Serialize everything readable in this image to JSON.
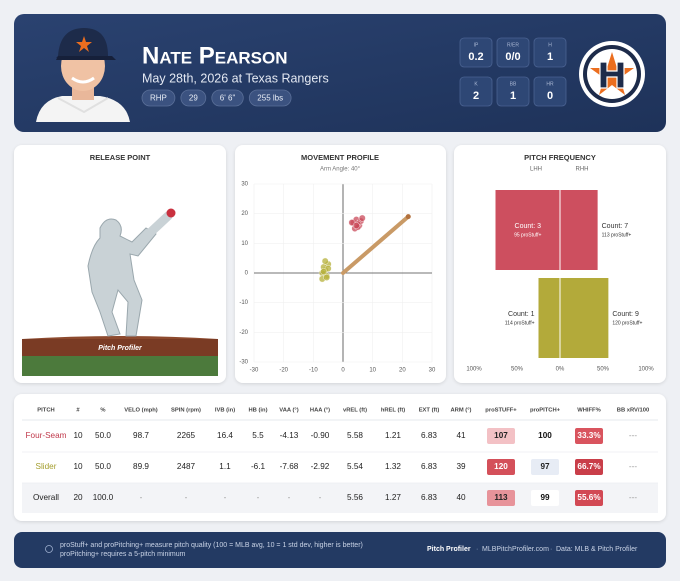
{
  "header": {
    "name": "Nate Pearson",
    "date": "May 28th, 2026 at Texas Rangers",
    "tags": [
      "RHP",
      "29",
      "6' 6\"",
      "255 lbs"
    ],
    "stat_labels": [
      "IP",
      "R/ER",
      "H",
      "K",
      "BB",
      "HR"
    ],
    "stat_values": [
      "0.2",
      "0/0",
      "1",
      "2",
      "1",
      "0"
    ]
  },
  "release_point": {
    "title": "RELEASE POINT",
    "logo": "Pitch Profiler"
  },
  "movement_profile": {
    "type": "scatter",
    "title": "MOVEMENT PROFILE",
    "subtitle": "Arm Angle: 40°",
    "xlim": [
      -30,
      30
    ],
    "xticks": [
      -30,
      -20,
      -10,
      0,
      10,
      20,
      30
    ],
    "ylim": [
      -30,
      30
    ],
    "yticks": [
      -30,
      -20,
      -10,
      0,
      10,
      20,
      30
    ],
    "series": [
      {
        "color": "#c94a5a",
        "x": [
          3.5,
          4.5,
          5.5,
          6,
          4,
          5,
          3,
          6.5,
          5,
          4.5
        ],
        "y": [
          17,
          18,
          16,
          17.5,
          15,
          16.5,
          17,
          18.5,
          15.5,
          16
        ]
      },
      {
        "color": "#b5b03a",
        "x": [
          -6,
          -5,
          -7,
          -6.5,
          -5.5,
          -6,
          -7,
          -5,
          -6.5,
          -5.5
        ],
        "y": [
          1,
          3,
          0,
          2,
          -1,
          4,
          -2,
          1.5,
          0.5,
          -1.5
        ]
      }
    ]
  },
  "pitch_frequency": {
    "type": "bar",
    "title": "PITCH FREQUENCY",
    "left_label": "LHH",
    "right_label": "RHH",
    "xlim": [
      -100,
      100
    ],
    "xticks": [
      {
        "value": -100,
        "label": "100%"
      },
      {
        "value": -50,
        "label": "50%"
      },
      {
        "value": 0,
        "label": "0%"
      },
      {
        "value": 50,
        "label": "50%"
      },
      {
        "value": 100,
        "label": "100%"
      }
    ],
    "series": [
      {
        "color": "#cd4f5f",
        "lhh": 3,
        "lhh_label": "Count: 3",
        "lhh_note": "95 proStuff+",
        "rhh": 7,
        "rhh_label": "Count: 7",
        "rhh_note": "113 proStuff+"
      },
      {
        "color": "#b3aa3a",
        "lhh": 1,
        "lhh_label": "Count: 1",
        "lhh_note": "114 proStuff+",
        "rhh": 9,
        "rhh_label": "Count: 9",
        "rhh_note": "120 proStuff+"
      }
    ]
  },
  "table": {
    "columns": [
      "PITCH",
      "#",
      "%",
      "VELO (mph)",
      "SPIN (rpm)",
      "IVB (in)",
      "HB (in)",
      "VAA (°)",
      "HAA (°)",
      "vREL (ft)",
      "hREL (ft)",
      "EXT (ft)",
      "ARM (°)",
      "proSTUFF+",
      "proPITCH+",
      "WHIFF%",
      "BB xRV/100"
    ],
    "rows": [
      [
        "Four-Seam",
        "10",
        "50.0",
        "98.7",
        "2265",
        "16.4",
        "5.5",
        "-4.13",
        "-0.90",
        "5.58",
        "1.21",
        "6.83",
        "41",
        "107",
        "100",
        "33.3%",
        "---"
      ],
      [
        "Slider",
        "10",
        "50.0",
        "89.9",
        "2487",
        "1.1",
        "-6.1",
        "-7.68",
        "-2.92",
        "5.54",
        "1.32",
        "6.83",
        "39",
        "120",
        "97",
        "66.7%",
        "---"
      ],
      [
        "Overall",
        "20",
        "100.0",
        "-",
        "-",
        "-",
        "-",
        "-",
        "-",
        "5.56",
        "1.27",
        "6.83",
        "40",
        "113",
        "99",
        "55.6%",
        "---"
      ]
    ]
  },
  "footer": {
    "note": [
      "proStuff+ and proPitching+ measure pitch quality (100 = MLB avg, 10 = 1 std dev, higher is better)",
      "proPitching+ requires a 5-pitch minimum"
    ],
    "brand": "Pitch Profiler",
    "site": "MLBPitchProfiler.com",
    "source": "Data: MLB & Pitch Profiler"
  }
}
